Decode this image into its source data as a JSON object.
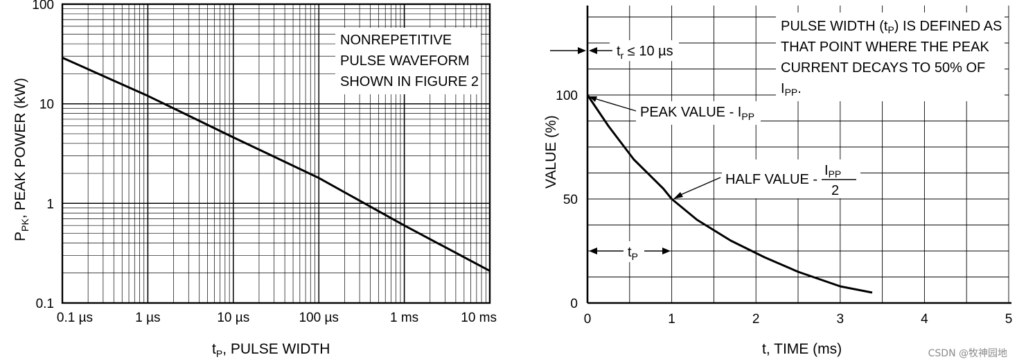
{
  "chart_data": [
    {
      "type": "line",
      "scale": "log-log",
      "xlabel_main": "t",
      "xlabel_sub": "P",
      "xlabel_rest": ", PULSE WIDTH",
      "ylabel_main": "P",
      "ylabel_sub": "PK",
      "ylabel_rest": ", PEAK POWER (kW)",
      "xlim_s": [
        1e-07,
        0.01
      ],
      "ylim": [
        0.1,
        100
      ],
      "xticks": [
        {
          "v": 1e-07,
          "label": "0.1 µs"
        },
        {
          "v": 1e-06,
          "label": "1 µs"
        },
        {
          "v": 1e-05,
          "label": "10 µs"
        },
        {
          "v": 0.0001,
          "label": "100 µs"
        },
        {
          "v": 0.001,
          "label": "1 ms"
        },
        {
          "v": 0.01,
          "label": "10 ms"
        }
      ],
      "yticks": [
        {
          "v": 0.1,
          "label": "0.1"
        },
        {
          "v": 1,
          "label": "1"
        },
        {
          "v": 10,
          "label": "10"
        },
        {
          "v": 100,
          "label": "100"
        }
      ],
      "grid": true,
      "annotation": [
        "NONREPETITIVE",
        "PULSE WAVEFORM",
        "SHOWN IN FIGURE 2"
      ],
      "series": [
        {
          "x_s": [
            1e-07,
            1e-06,
            1e-05,
            0.0001,
            0.001,
            0.01
          ],
          "y": [
            29,
            12,
            4.6,
            1.8,
            0.6,
            0.21
          ]
        }
      ]
    },
    {
      "type": "line",
      "xlabel": "t, TIME (ms)",
      "ylabel": "VALUE (%)",
      "xlim": [
        0,
        5
      ],
      "ylim": [
        0,
        100
      ],
      "xticks": [
        0,
        1,
        2,
        3,
        4,
        5
      ],
      "yticks": [
        0,
        50,
        100
      ],
      "grid": true,
      "series": [
        {
          "x": [
            0,
            0.25,
            0.55,
            0.9,
            1.0,
            1.3,
            1.7,
            2.1,
            2.5,
            3.0,
            3.38
          ],
          "y": [
            100,
            85,
            69,
            55,
            50,
            40,
            30,
            22,
            15,
            8,
            5
          ]
        }
      ],
      "annotations": {
        "rise_main": "t",
        "rise_sub": "r",
        "rise_rest": " ≤ 10 µs",
        "pulse_note": [
          {
            "main": "PULSE WIDTH (t",
            "sub": "P",
            "rest": ") IS DEFINED AS"
          },
          {
            "main": "THAT POINT WHERE THE PEAK",
            "sub": "",
            "rest": ""
          },
          {
            "main": "CURRENT DECAYS TO 50% OF",
            "sub": "",
            "rest": ""
          },
          {
            "main": "I",
            "sub": "PP",
            "rest": "."
          }
        ],
        "peak_main": "PEAK VALUE - I",
        "peak_sub": "PP",
        "half_main": "HALF VALUE -",
        "half_num": "I",
        "half_num_sub": "PP",
        "half_den": "2",
        "tp_main": "t",
        "tp_sub": "P"
      }
    }
  ],
  "watermark": "CSDN @牧神园地"
}
